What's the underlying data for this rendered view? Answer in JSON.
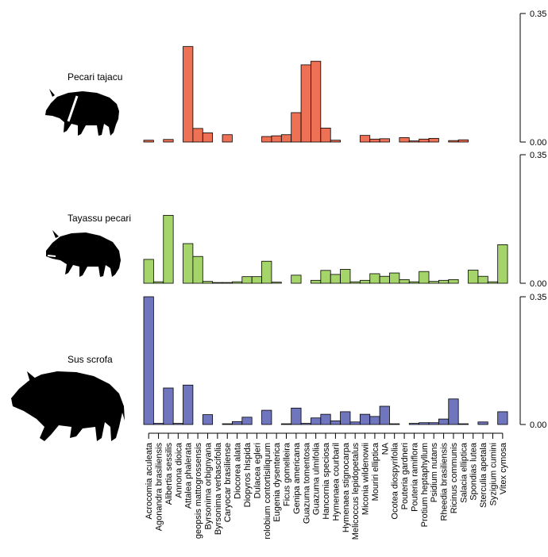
{
  "chart_data": {
    "type": "bar",
    "categories": [
      "Acrocomia aculeata",
      "Agonandra brasiliensis",
      "Alibertia sessilis",
      "Annona dioica",
      "Attalea phalerata",
      "geopsis mattogrossensis",
      "Byrsonima orbignyana",
      "Byrsonima verbascifolia",
      "Caryocar brasiliense",
      "Diocorea alata",
      "Diopyros hispida",
      "Dulacea egleri",
      "rolobium contortisiliquum",
      "Eugenia dysenterica",
      "Ficus gomelleira",
      "Genipa americana",
      "Guazuma tomentosa",
      "Guazuma ulmifolia",
      "Hancornia speciosa",
      "Hymenaea courbaril",
      "Hymenaea stignocarpa",
      "Melicoccus lepidopetalus",
      "Miconia wildenowii",
      "Mouriri elliptica",
      "NA",
      "Ocotea diospyrifolia",
      "Pouteria gardneri",
      "Pouteria ramiflora",
      "Protium heptaphyllum",
      "Psidium nutans",
      "Rheedia brasiliensis",
      "Ricinus communis",
      "Salacia elliptica",
      "Spondias lutea",
      "Sterculia apetala",
      "Syzigium cumini",
      "Vitex cymosa"
    ],
    "ylim": [
      0,
      0.35
    ],
    "yticks": [
      "0.00",
      "0.35"
    ],
    "series": [
      {
        "name": "Pecari tajacu",
        "color": "#ee7055",
        "icon": "collared-peccary-silhouette",
        "values": [
          0.005,
          null,
          0.007,
          null,
          0.26,
          0.037,
          0.025,
          null,
          0.02,
          null,
          null,
          null,
          0.015,
          0.017,
          0.02,
          0.08,
          0.21,
          0.22,
          0.038,
          0.005,
          null,
          null,
          0.018,
          0.008,
          0.009,
          null,
          0.012,
          0.003,
          0.008,
          0.01,
          null,
          0.004,
          0.006,
          null,
          null,
          null,
          null
        ]
      },
      {
        "name": "Tayassu pecari",
        "color": "#a5d46a",
        "icon": "white-lipped-peccary-silhouette",
        "values": [
          0.065,
          0.004,
          0.185,
          null,
          0.108,
          0.073,
          0.005,
          0.002,
          0.002,
          0.004,
          0.018,
          0.018,
          0.06,
          0.003,
          null,
          0.022,
          null,
          0.008,
          0.035,
          0.024,
          0.038,
          0.004,
          0.008,
          0.026,
          0.019,
          0.028,
          0.01,
          0.004,
          0.032,
          0.005,
          0.008,
          0.01,
          null,
          0.036,
          0.019,
          0.004,
          0.105
        ]
      },
      {
        "name": "Sus scrofa",
        "color": "#7076bd",
        "icon": "wild-boar-silhouette",
        "values": [
          0.35,
          0.003,
          0.1,
          0.003,
          0.108,
          null,
          0.027,
          null,
          0.002,
          0.008,
          0.02,
          null,
          0.039,
          null,
          0.002,
          0.045,
          0.003,
          0.018,
          0.028,
          0.01,
          0.035,
          0.007,
          0.028,
          0.022,
          0.05,
          0.002,
          null,
          0.003,
          0.005,
          0.005,
          0.015,
          0.07,
          0.002,
          null,
          0.007,
          null,
          0.035
        ]
      }
    ]
  }
}
